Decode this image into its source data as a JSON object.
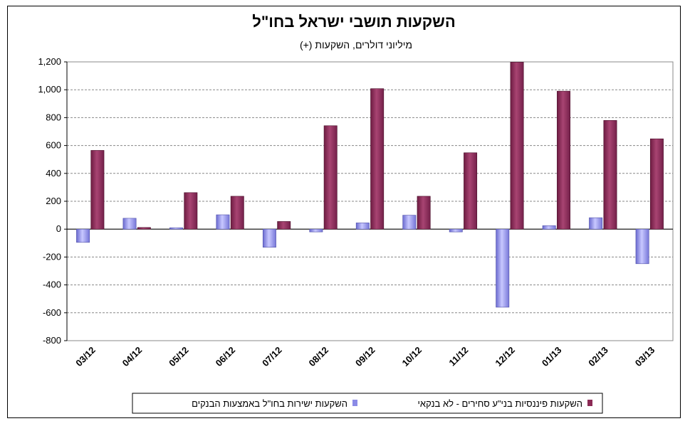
{
  "chart_data": {
    "type": "bar",
    "title": "השקעות תושבי ישראל בחו\"ל",
    "subtitle": "מיליוני דולרים, השקעות (+)",
    "categories": [
      "03/12",
      "04/12",
      "05/12",
      "06/12",
      "07/12",
      "08/12",
      "09/12",
      "10/12",
      "11/12",
      "12/12",
      "01/13",
      "02/13",
      "03/13"
    ],
    "ylim": [
      -800,
      1200
    ],
    "yticks": [
      -800,
      -600,
      -400,
      -200,
      0,
      200,
      400,
      600,
      800,
      1000,
      1200
    ],
    "ytick_labels": [
      "-800",
      "-600",
      "-400",
      "-200",
      "0",
      "200",
      "400",
      "600",
      "800",
      "1,000",
      "1,200"
    ],
    "grid": true,
    "legend_position": "bottom",
    "series": [
      {
        "name": "השקעות ישירות בחו\"ל באמצעות הבנקים",
        "color": "#8a8ae6",
        "values": [
          -95,
          78,
          10,
          103,
          -130,
          -20,
          45,
          100,
          -20,
          -560,
          25,
          82,
          -248
        ]
      },
      {
        "name": "השקעות פיננסיות בני\"ע סחירים - לא בנקאי",
        "color": "#8b2a55",
        "values": [
          565,
          12,
          262,
          236,
          55,
          742,
          1008,
          236,
          548,
          1198,
          990,
          780,
          648
        ]
      }
    ]
  }
}
